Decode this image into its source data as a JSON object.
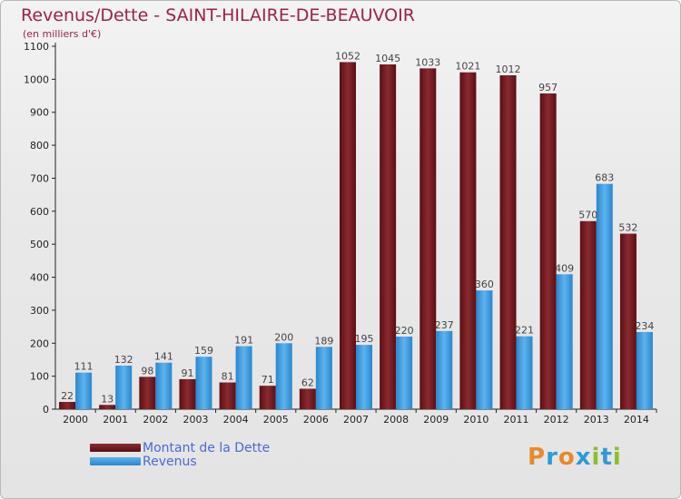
{
  "header": {
    "title": "Revenus/Dette - SAINT-HILAIRE-DE-BEAUVOIR",
    "subtitle": "(en milliers d'€)"
  },
  "legend": {
    "items": [
      {
        "label": "Montant de la Dette",
        "color": "#7a1f24"
      },
      {
        "label": "Revenus",
        "color": "#3f9ee0"
      }
    ]
  },
  "logo": {
    "text": "Proxiti",
    "letters": [
      {
        "ch": "P",
        "color": "#e8892a"
      },
      {
        "ch": "r",
        "color": "#2f9bd6"
      },
      {
        "ch": "o",
        "color": "#e8892a"
      },
      {
        "ch": "x",
        "color": "#2f9bd6"
      },
      {
        "ch": "i",
        "color": "#8cbf2e"
      },
      {
        "ch": "t",
        "color": "#2f9bd6"
      },
      {
        "ch": "i",
        "color": "#8cbf2e"
      }
    ]
  },
  "chart_data": {
    "type": "bar",
    "title": "Revenus/Dette - SAINT-HILAIRE-DE-BEAUVOIR",
    "subtitle": "(en milliers d'€)",
    "xlabel": "",
    "ylabel": "",
    "ylim": [
      0,
      1100
    ],
    "yticks": [
      0,
      100,
      200,
      300,
      400,
      500,
      600,
      700,
      800,
      900,
      1000,
      1100
    ],
    "grid": false,
    "legend_position": "bottom-left",
    "categories": [
      "2000",
      "2001",
      "2002",
      "2003",
      "2004",
      "2005",
      "2006",
      "2007",
      "2008",
      "2009",
      "2010",
      "2011",
      "2012",
      "2013",
      "2014"
    ],
    "series": [
      {
        "name": "Montant de la Dette",
        "color": "#7a1f24",
        "values": [
          22,
          13,
          98,
          91,
          81,
          71,
          62,
          1052,
          1045,
          1033,
          1021,
          1012,
          957,
          570,
          532
        ]
      },
      {
        "name": "Revenus",
        "color": "#3f9ee0",
        "values": [
          111,
          132,
          141,
          159,
          191,
          200,
          189,
          195,
          220,
          237,
          360,
          221,
          409,
          683,
          234
        ]
      }
    ]
  }
}
